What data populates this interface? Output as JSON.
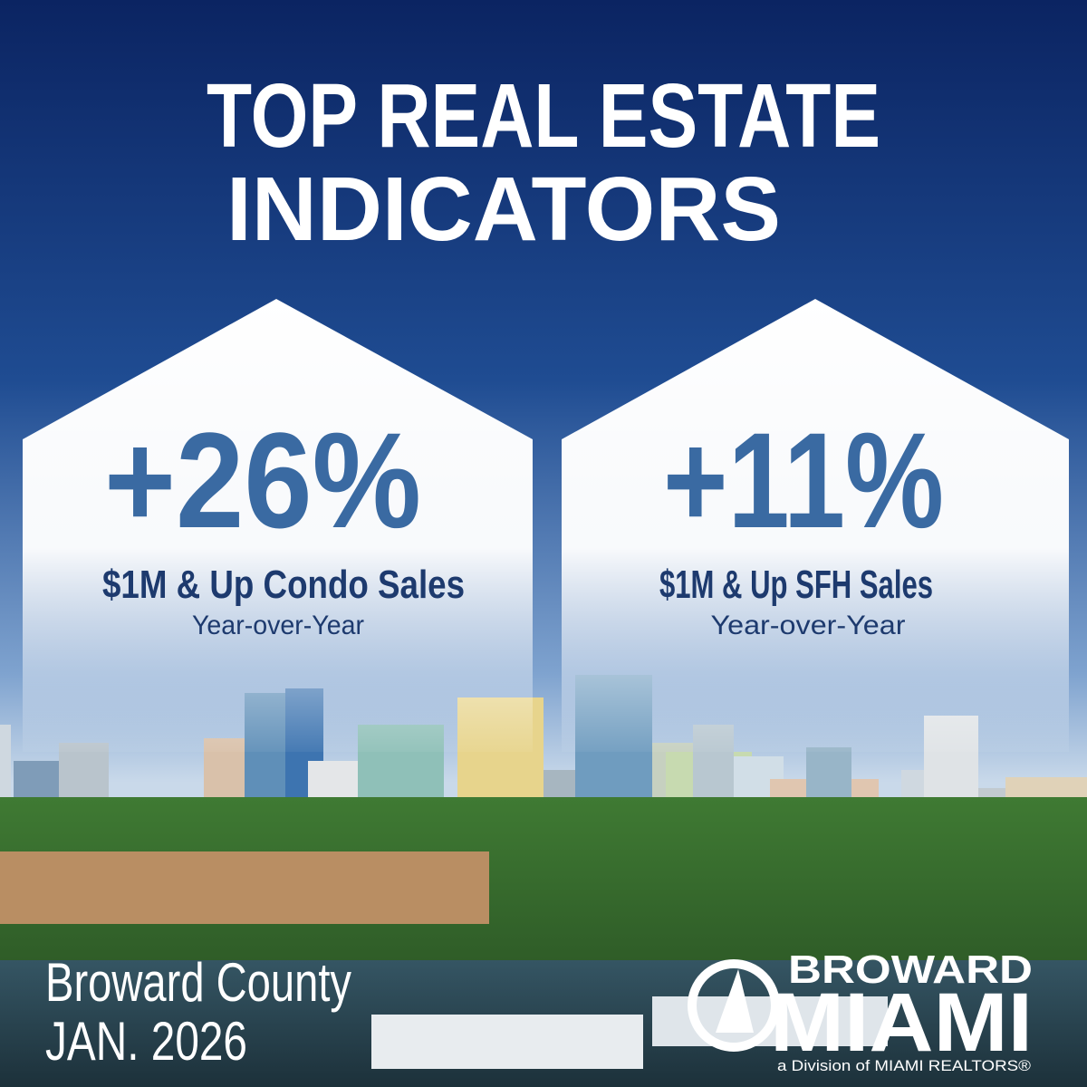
{
  "header": {
    "title_lines": [
      "TOP REAL ESTATE",
      "INDICATORS"
    ]
  },
  "cards": [
    {
      "value": "+26%",
      "label": "$1M & Up Condo Sales",
      "period": "Year-over-Year"
    },
    {
      "value": "+11%",
      "label": "$1M & Up SFH Sales",
      "period": "Year-over-Year"
    }
  ],
  "footer": {
    "location": "Broward County",
    "date": "JAN. 2026"
  },
  "logo": {
    "top": "BROWARD",
    "main": "MIAMI",
    "tagline": "a Division of MIAMI REALTORS®"
  }
}
